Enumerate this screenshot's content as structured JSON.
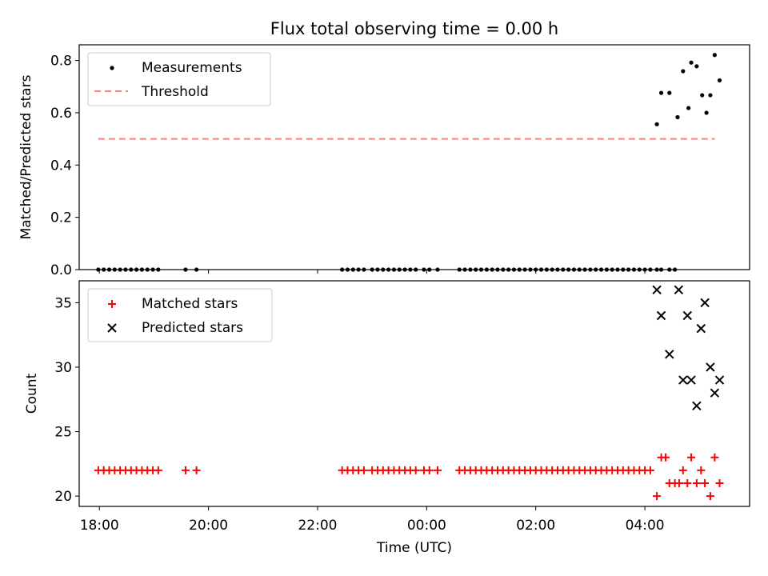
{
  "chart_data": [
    {
      "type": "scatter",
      "title": "Flux total observing time = 0.00 h",
      "xlabel": "",
      "ylabel": "Matched/Predicted stars",
      "ylim": [
        0,
        0.86
      ],
      "yticks": [
        0.0,
        0.2,
        0.4,
        0.6,
        0.8
      ],
      "ytick_labels": [
        "0.0",
        "0.2",
        "0.4",
        "0.6",
        "0.8"
      ],
      "xlim_hours": [
        17.63,
        29.92
      ],
      "legend_position": "top-left",
      "legend": [
        "Measurements",
        "Threshold"
      ],
      "series": [
        {
          "name": "Measurements",
          "marker": "dot",
          "color": "#000000",
          "x_hours": [
            17.98,
            18.08,
            18.18,
            18.28,
            18.38,
            18.48,
            18.58,
            18.68,
            18.78,
            18.88,
            18.98,
            19.08,
            19.58,
            19.78,
            22.45,
            22.55,
            22.65,
            22.75,
            22.85,
            23.0,
            23.1,
            23.2,
            23.3,
            23.4,
            23.5,
            23.6,
            23.7,
            23.8,
            23.95,
            24.05,
            24.2,
            24.6,
            24.7,
            24.8,
            24.9,
            25.0,
            25.1,
            25.2,
            25.3,
            25.4,
            25.5,
            25.6,
            25.7,
            25.8,
            25.9,
            26.0,
            26.1,
            26.2,
            26.3,
            26.4,
            26.5,
            26.6,
            26.7,
            26.8,
            26.9,
            27.0,
            27.1,
            27.2,
            27.3,
            27.4,
            27.5,
            27.6,
            27.7,
            27.8,
            27.9,
            28.0,
            28.1,
            28.22,
            28.3,
            28.45,
            28.55,
            28.22,
            28.3,
            28.45,
            28.6,
            28.7,
            28.8,
            28.85,
            28.95,
            29.05,
            29.13,
            29.2,
            29.28,
            29.37
          ],
          "y": [
            0,
            0,
            0,
            0,
            0,
            0,
            0,
            0,
            0,
            0,
            0,
            0,
            0,
            0,
            0,
            0,
            0,
            0,
            0,
            0,
            0,
            0,
            0,
            0,
            0,
            0,
            0,
            0,
            0,
            0,
            0,
            0,
            0,
            0,
            0,
            0,
            0,
            0,
            0,
            0,
            0,
            0,
            0,
            0,
            0,
            0,
            0,
            0,
            0,
            0,
            0,
            0,
            0,
            0,
            0,
            0,
            0,
            0,
            0,
            0,
            0,
            0,
            0,
            0,
            0,
            0,
            0,
            0,
            0,
            0,
            0,
            0.556,
            0.676,
            0.676,
            0.583,
            0.759,
            0.618,
            0.792,
            0.778,
            0.667,
            0.6,
            0.667,
            0.821,
            0.724
          ]
        },
        {
          "name": "Threshold",
          "style": "dashed",
          "color": "#ff7f7f",
          "x_hours": [
            17.98,
            29.28
          ],
          "y": [
            0.5,
            0.5
          ]
        }
      ]
    },
    {
      "type": "scatter",
      "xlabel": "Time (UTC)",
      "ylabel": "Count",
      "ylim": [
        19.2,
        36.7
      ],
      "yticks": [
        20,
        25,
        30,
        35
      ],
      "ytick_labels": [
        "20",
        "25",
        "30",
        "35"
      ],
      "xlim_hours": [
        17.63,
        29.92
      ],
      "xticks_hours": [
        18,
        20,
        22,
        24,
        26,
        28
      ],
      "xtick_labels": [
        "18:00",
        "20:00",
        "22:00",
        "00:00",
        "02:00",
        "04:00"
      ],
      "legend_position": "top-left",
      "legend": [
        "Matched stars",
        "Predicted stars"
      ],
      "series": [
        {
          "name": "Matched stars",
          "marker": "plus",
          "color": "#ff0000",
          "x_hours": [
            17.98,
            18.08,
            18.18,
            18.28,
            18.38,
            18.48,
            18.58,
            18.68,
            18.78,
            18.88,
            18.98,
            19.08,
            19.58,
            19.78,
            22.45,
            22.55,
            22.65,
            22.75,
            22.85,
            23.0,
            23.1,
            23.2,
            23.3,
            23.4,
            23.5,
            23.6,
            23.7,
            23.8,
            23.95,
            24.05,
            24.2,
            24.6,
            24.7,
            24.8,
            24.9,
            25.0,
            25.1,
            25.2,
            25.3,
            25.4,
            25.5,
            25.6,
            25.7,
            25.8,
            25.9,
            26.0,
            26.1,
            26.2,
            26.3,
            26.4,
            26.5,
            26.6,
            26.7,
            26.8,
            26.9,
            27.0,
            27.1,
            27.2,
            27.3,
            27.4,
            27.5,
            27.6,
            27.7,
            27.8,
            27.9,
            28.0,
            28.1,
            28.22,
            28.3,
            28.38,
            28.45,
            28.55,
            28.63,
            28.7,
            28.78,
            28.85,
            28.95,
            29.03,
            29.1,
            29.2,
            29.28,
            29.37
          ],
          "y": [
            22,
            22,
            22,
            22,
            22,
            22,
            22,
            22,
            22,
            22,
            22,
            22,
            22,
            22,
            22,
            22,
            22,
            22,
            22,
            22,
            22,
            22,
            22,
            22,
            22,
            22,
            22,
            22,
            22,
            22,
            22,
            22,
            22,
            22,
            22,
            22,
            22,
            22,
            22,
            22,
            22,
            22,
            22,
            22,
            22,
            22,
            22,
            22,
            22,
            22,
            22,
            22,
            22,
            22,
            22,
            22,
            22,
            22,
            22,
            22,
            22,
            22,
            22,
            22,
            22,
            22,
            22,
            20,
            23,
            23,
            21,
            21,
            21,
            22,
            21,
            23,
            21,
            22,
            21,
            20,
            23,
            21
          ]
        },
        {
          "name": "Predicted stars",
          "marker": "x",
          "color": "#000000",
          "x_hours": [
            28.22,
            28.3,
            28.45,
            28.62,
            28.7,
            28.78,
            28.85,
            28.95,
            29.03,
            29.1,
            29.2,
            29.28,
            29.37
          ],
          "y": [
            36,
            34,
            31,
            36,
            29,
            34,
            29,
            27,
            33,
            35,
            30,
            28,
            29
          ]
        }
      ]
    }
  ]
}
